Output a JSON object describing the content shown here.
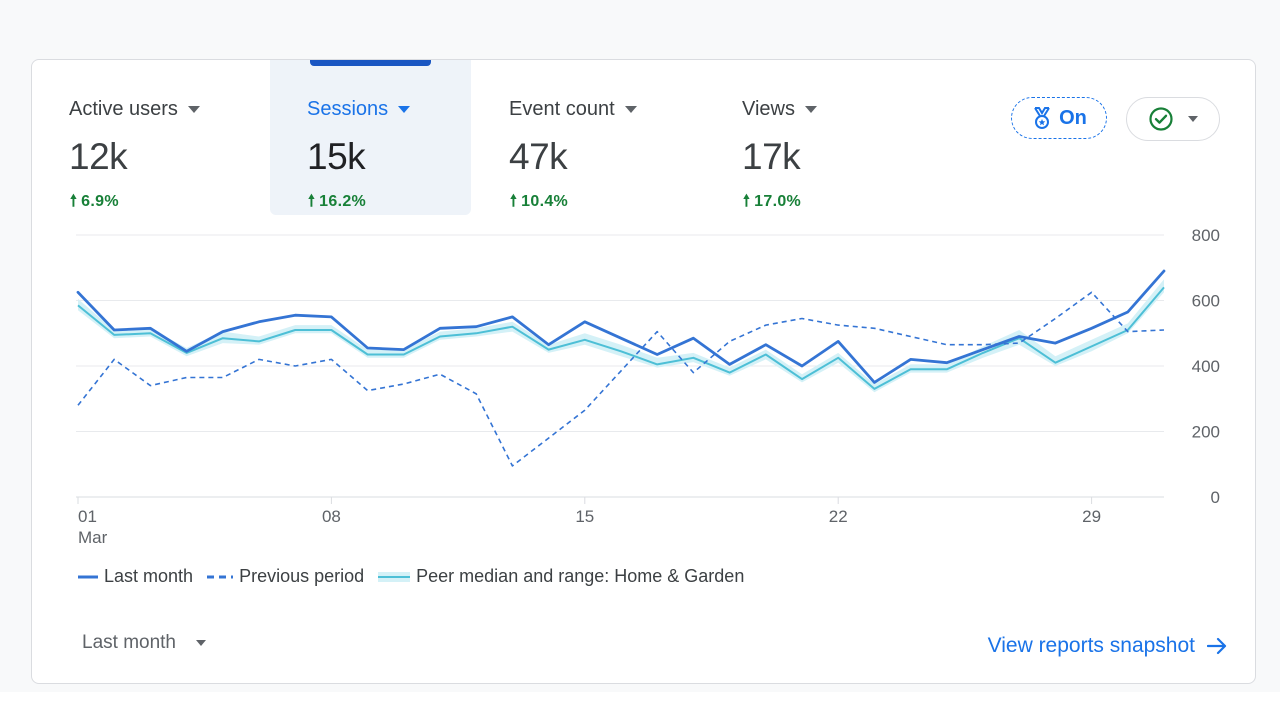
{
  "tabs": [
    {
      "label": "Active users",
      "value": "12k",
      "delta": "6.9%",
      "selected": false
    },
    {
      "label": "Sessions",
      "value": "15k",
      "delta": "16.2%",
      "selected": true
    },
    {
      "label": "Event count",
      "value": "47k",
      "delta": "10.4%",
      "selected": false
    },
    {
      "label": "Views",
      "value": "17k",
      "delta": "17.0%",
      "selected": false
    }
  ],
  "benchmark_toggle": {
    "label": "On",
    "icon": "medal-icon"
  },
  "status_menu": {
    "icon": "check-circle-icon"
  },
  "colors": {
    "accent": "#1a73e8",
    "line_current": "#3474d4",
    "peer_band": "#d4f1f7",
    "peer_median": "#4dbfd6",
    "positive": "#188038"
  },
  "chart_data": {
    "type": "line",
    "x": [
      1,
      2,
      3,
      4,
      5,
      6,
      7,
      8,
      9,
      10,
      11,
      12,
      13,
      14,
      15,
      16,
      17,
      18,
      19,
      20,
      21,
      22,
      23,
      24,
      25,
      26,
      27,
      28,
      29,
      30,
      31
    ],
    "x_tick_labels": [
      {
        "value": 1,
        "label": "01",
        "sublabel": "Mar"
      },
      {
        "value": 8,
        "label": "08"
      },
      {
        "value": 15,
        "label": "15"
      },
      {
        "value": 22,
        "label": "22"
      },
      {
        "value": 29,
        "label": "29"
      }
    ],
    "ylim": [
      0,
      800
    ],
    "y_ticks": [
      "0",
      "200",
      "400",
      "600",
      "800"
    ],
    "y_axis_side": "right",
    "grid": true,
    "series": [
      {
        "name": "Last month",
        "style": "solid",
        "values": [
          625,
          510,
          515,
          445,
          505,
          535,
          555,
          550,
          455,
          450,
          515,
          520,
          550,
          465,
          535,
          485,
          435,
          485,
          405,
          465,
          400,
          475,
          350,
          420,
          410,
          450,
          490,
          470,
          515,
          565,
          690
        ]
      },
      {
        "name": "Previous period",
        "style": "dashed",
        "values": [
          280,
          420,
          340,
          365,
          365,
          420,
          400,
          420,
          325,
          345,
          375,
          315,
          95,
          180,
          265,
          385,
          505,
          380,
          475,
          525,
          545,
          525,
          515,
          490,
          465,
          465,
          470,
          545,
          625,
          505,
          510
        ]
      },
      {
        "name": "Peer median and range: Home & Garden",
        "style": "band",
        "median": [
          585,
          495,
          500,
          440,
          485,
          475,
          510,
          510,
          435,
          435,
          490,
          500,
          520,
          450,
          480,
          445,
          405,
          425,
          380,
          435,
          360,
          425,
          330,
          390,
          390,
          440,
          485,
          410,
          460,
          510,
          640
        ],
        "low": [
          570,
          485,
          490,
          430,
          470,
          465,
          500,
          500,
          425,
          425,
          480,
          490,
          505,
          440,
          465,
          430,
          395,
          412,
          370,
          420,
          350,
          410,
          320,
          380,
          380,
          425,
          465,
          400,
          445,
          500,
          625
        ],
        "high": [
          605,
          510,
          515,
          455,
          505,
          490,
          525,
          525,
          450,
          450,
          505,
          515,
          535,
          465,
          500,
          465,
          425,
          440,
          395,
          450,
          375,
          440,
          345,
          405,
          405,
          460,
          510,
          430,
          480,
          530,
          665
        ]
      }
    ]
  },
  "legend": [
    {
      "label": "Last month",
      "style": "solid"
    },
    {
      "label": "Previous period",
      "style": "dashed"
    },
    {
      "label": "Peer median and range: Home & Garden",
      "style": "band"
    }
  ],
  "footer": {
    "period_label": "Last month",
    "snapshot_link": "View reports snapshot"
  }
}
